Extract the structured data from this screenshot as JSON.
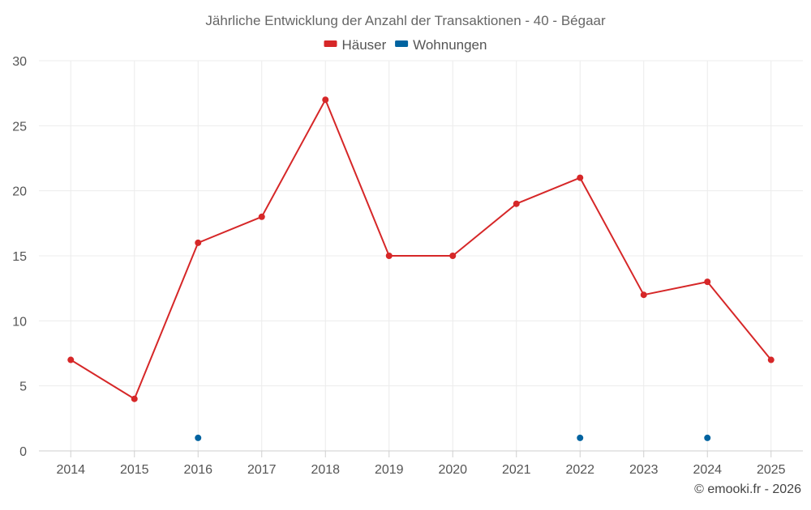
{
  "chart_data": {
    "type": "line",
    "title": "Jährliche Entwicklung der Anzahl der Transaktionen - 40 - Bégaar",
    "categories": [
      "2014",
      "2015",
      "2016",
      "2017",
      "2018",
      "2019",
      "2020",
      "2021",
      "2022",
      "2023",
      "2024",
      "2025"
    ],
    "series": [
      {
        "name": "Häuser",
        "color": "#d62728",
        "line": true,
        "values": [
          7,
          4,
          16,
          18,
          27,
          15,
          15,
          19,
          21,
          12,
          13,
          7
        ]
      },
      {
        "name": "Wohnungen",
        "color": "#0063a0",
        "line": false,
        "values": [
          null,
          null,
          1,
          null,
          null,
          null,
          null,
          null,
          1,
          null,
          1,
          null
        ]
      }
    ],
    "ylim": [
      0,
      30
    ],
    "yticks": [
      "0",
      "5",
      "10",
      "15",
      "20",
      "25",
      "30"
    ],
    "grid": true,
    "legend_position": "top-center",
    "xlabel": "",
    "ylabel": ""
  },
  "credit": "© emooki.fr - 2026"
}
